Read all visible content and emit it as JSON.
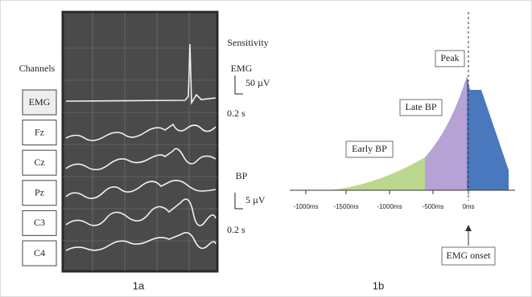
{
  "panel_a": {
    "caption": "1a",
    "channels_title": "Channels",
    "channels": [
      "EMG",
      "Fz",
      "Cz",
      "Pz",
      "C3",
      "C4"
    ],
    "sensitivity_title": "Sensitivity",
    "emg_label": "EMG",
    "emg_scale": "50 µV",
    "emg_time": "0.2 s",
    "bp_label": "BP",
    "bp_scale": "5 µV",
    "bp_time": "0.2 s"
  },
  "panel_b": {
    "caption": "1b",
    "x_tick_labels": [
      "-1000ms",
      "-1500ms",
      "-1000ms",
      "-500ms",
      "0ms"
    ],
    "early_bp": "Early BP",
    "late_bp": "Late BP",
    "peak": "Peak",
    "emg_onset": "EMG onset"
  }
}
